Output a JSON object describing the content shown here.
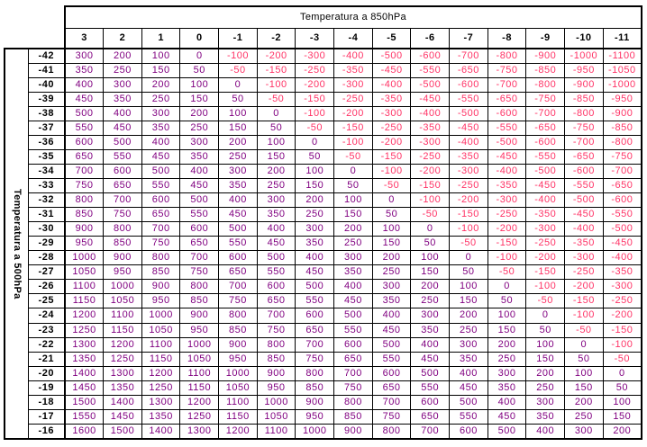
{
  "chart_data": {
    "type": "table",
    "title": "Temperatura a 850hPa",
    "row_axis_label": "Temperatura a 500hPa",
    "col_headers": [
      "3",
      "2",
      "1",
      "0",
      "-1",
      "-2",
      "-3",
      "-4",
      "-5",
      "-6",
      "-7",
      "-8",
      "-9",
      "-10",
      "-11"
    ],
    "row_headers": [
      "-42",
      "-41",
      "-40",
      "-39",
      "-38",
      "-37",
      "-36",
      "-35",
      "-34",
      "-33",
      "-32",
      "-31",
      "-30",
      "-29",
      "-28",
      "-27",
      "-26",
      "-25",
      "-24",
      "-23",
      "-22",
      "-21",
      "-20",
      "-19",
      "-18",
      "-17",
      "-16"
    ],
    "values": [
      [
        300,
        200,
        100,
        0,
        -100,
        -200,
        -300,
        -400,
        -500,
        -600,
        -700,
        -800,
        -900,
        -1000,
        -1100
      ],
      [
        350,
        250,
        150,
        50,
        -50,
        -150,
        -250,
        -350,
        -450,
        -550,
        -650,
        -750,
        -850,
        -950,
        -1050
      ],
      [
        400,
        300,
        200,
        100,
        0,
        -100,
        -200,
        -300,
        -400,
        -500,
        -600,
        -700,
        -800,
        -900,
        -1000
      ],
      [
        450,
        350,
        250,
        150,
        50,
        -50,
        -150,
        -250,
        -350,
        -450,
        -550,
        -650,
        -750,
        -850,
        -950
      ],
      [
        500,
        400,
        300,
        200,
        100,
        0,
        -100,
        -200,
        -300,
        -400,
        -500,
        -600,
        -700,
        -800,
        -900
      ],
      [
        550,
        450,
        350,
        250,
        150,
        50,
        -50,
        -150,
        -250,
        -350,
        -450,
        -550,
        -650,
        -750,
        -850
      ],
      [
        600,
        500,
        400,
        300,
        200,
        100,
        0,
        -100,
        -200,
        -300,
        -400,
        -500,
        -600,
        -700,
        -800
      ],
      [
        650,
        550,
        450,
        350,
        250,
        150,
        50,
        -50,
        -150,
        -250,
        -350,
        -450,
        -550,
        -650,
        -750
      ],
      [
        700,
        600,
        500,
        400,
        300,
        200,
        100,
        0,
        -100,
        -200,
        -300,
        -400,
        -500,
        -600,
        -700
      ],
      [
        750,
        650,
        550,
        450,
        350,
        250,
        150,
        50,
        -50,
        -150,
        -250,
        -350,
        -450,
        -550,
        -650
      ],
      [
        800,
        700,
        600,
        500,
        400,
        300,
        200,
        100,
        0,
        -100,
        -200,
        -300,
        -400,
        -500,
        -600
      ],
      [
        850,
        750,
        650,
        550,
        450,
        350,
        250,
        150,
        50,
        -50,
        -150,
        -250,
        -350,
        -450,
        -550
      ],
      [
        900,
        800,
        700,
        600,
        500,
        400,
        300,
        200,
        100,
        0,
        -100,
        -200,
        -300,
        -400,
        -500
      ],
      [
        950,
        850,
        750,
        650,
        550,
        450,
        350,
        250,
        150,
        50,
        -50,
        -150,
        -250,
        -350,
        -450
      ],
      [
        1000,
        900,
        800,
        700,
        600,
        500,
        400,
        300,
        200,
        100,
        0,
        -100,
        -200,
        -300,
        -400
      ],
      [
        1050,
        950,
        850,
        750,
        650,
        550,
        450,
        350,
        250,
        150,
        50,
        -50,
        -150,
        -250,
        -350
      ],
      [
        1100,
        1000,
        900,
        800,
        700,
        600,
        500,
        400,
        300,
        200,
        100,
        0,
        -100,
        -200,
        -300
      ],
      [
        1150,
        1050,
        950,
        850,
        750,
        650,
        550,
        450,
        350,
        250,
        150,
        50,
        -50,
        -150,
        -250
      ],
      [
        1200,
        1100,
        1000,
        900,
        800,
        700,
        600,
        500,
        400,
        300,
        200,
        100,
        0,
        -100,
        -200
      ],
      [
        1250,
        1150,
        1050,
        950,
        850,
        750,
        650,
        550,
        450,
        350,
        250,
        150,
        50,
        -50,
        -150
      ],
      [
        1300,
        1200,
        1100,
        1000,
        900,
        800,
        700,
        600,
        500,
        400,
        300,
        200,
        100,
        0,
        -100
      ],
      [
        1350,
        1250,
        1150,
        1050,
        950,
        850,
        750,
        650,
        550,
        450,
        350,
        250,
        150,
        50,
        -50
      ],
      [
        1400,
        1300,
        1200,
        1100,
        1000,
        900,
        800,
        700,
        600,
        500,
        400,
        300,
        200,
        100,
        0
      ],
      [
        1450,
        1350,
        1250,
        1150,
        1050,
        950,
        850,
        750,
        650,
        550,
        450,
        350,
        250,
        150,
        50
      ],
      [
        1500,
        1400,
        1300,
        1200,
        1100,
        1000,
        900,
        800,
        700,
        600,
        500,
        400,
        300,
        200,
        100
      ],
      [
        1550,
        1450,
        1350,
        1250,
        1150,
        1050,
        950,
        850,
        750,
        650,
        550,
        450,
        350,
        250,
        150
      ],
      [
        1600,
        1500,
        1400,
        1300,
        1200,
        1100,
        1000,
        900,
        800,
        700,
        600,
        500,
        400,
        300,
        200
      ]
    ],
    "layout": {
      "grid": "on",
      "title_position": "top-center",
      "row_axis_label_position": "left-rotated"
    }
  },
  "colors": {
    "positive": "#800080",
    "negative": "#ff3366",
    "grid": "#000000",
    "background": "#ffffff"
  }
}
